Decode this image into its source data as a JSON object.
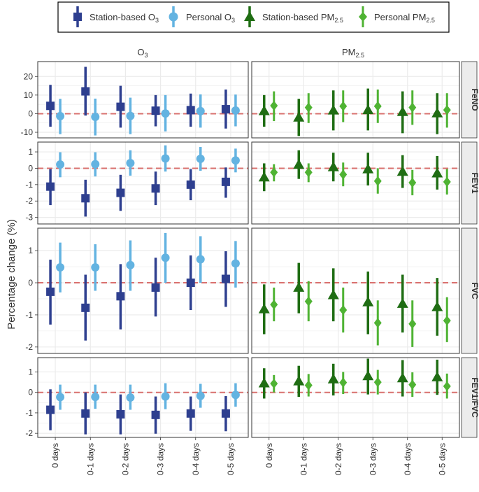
{
  "chart_data": {
    "type": "pointrange",
    "ylabel": "Percentage change (%)",
    "xlabel": "",
    "categories": [
      "0 days",
      "0-1 days",
      "0-2 days",
      "0-3 days",
      "0-4 days",
      "0-5 days"
    ],
    "legend": {
      "placement": "top",
      "items": [
        {
          "base": "Station-based O",
          "sub": "3",
          "color": "#2e3f8f",
          "shape": "square"
        },
        {
          "base": "Personal O",
          "sub": "3",
          "color": "#63b3e1",
          "shape": "circle"
        },
        {
          "base": "Station-based PM",
          "sub": "2.5",
          "color": "#1f6d13",
          "shape": "triangle"
        },
        {
          "base": "Personal PM",
          "sub": "2.5",
          "color": "#4fb333",
          "shape": "diamond"
        }
      ]
    },
    "columns": [
      {
        "base": "O",
        "sub": "3"
      },
      {
        "base": "PM",
        "sub": "2.5"
      }
    ],
    "rows": [
      {
        "label": "FeNO",
        "ylim": [
          -13,
          28
        ],
        "ticks": [
          -10,
          0,
          10,
          20
        ],
        "tick_labels": [
          "-10",
          "0",
          "10",
          "20"
        ],
        "panels": [
          [
            {
              "name": "Station-based O3",
              "estimate": [
                4.2,
                12.0,
                3.7,
                1.6,
                1.9,
                2.4
              ],
              "lower": [
                -7.0,
                -1.0,
                -7.5,
                -6.8,
                -7.0,
                -8.0
              ],
              "upper": [
                15.5,
                25.2,
                15.0,
                10.0,
                10.8,
                13.0
              ]
            },
            {
              "name": "Personal O3",
              "estimate": [
                -1.3,
                -1.7,
                -1.2,
                0.1,
                1.4,
                1.7
              ],
              "lower": [
                -11.0,
                -11.7,
                -11.0,
                -9.5,
                -7.5,
                -6.8
              ],
              "upper": [
                8.0,
                8.1,
                8.6,
                10.0,
                10.4,
                10.3
              ]
            }
          ],
          [
            {
              "name": "Station-based PM2.5",
              "estimate": [
                1.5,
                -2.0,
                1.8,
                2.0,
                1.0,
                0.3
              ],
              "lower": [
                -7.0,
                -12.0,
                -9.0,
                -9.0,
                -10.5,
                -11.0
              ],
              "upper": [
                10.0,
                8.0,
                12.5,
                13.5,
                12.0,
                11.0
              ]
            },
            {
              "name": "Personal PM2.5",
              "estimate": [
                4.3,
                3.3,
                4.0,
                4.0,
                3.3,
                2.0
              ],
              "lower": [
                -4.0,
                -5.0,
                -4.5,
                -5.0,
                -6.0,
                -7.5
              ],
              "upper": [
                12.0,
                11.0,
                12.5,
                13.0,
                12.5,
                11.0
              ]
            }
          ]
        ]
      },
      {
        "label": "FEV1",
        "ylim": [
          -3.4,
          1.6
        ],
        "ticks": [
          -3,
          -2,
          -1,
          0,
          1
        ],
        "tick_labels": [
          "-3",
          "-2",
          "-1",
          "0",
          "1"
        ],
        "panels": [
          [
            {
              "name": "Station-based O3",
              "estimate": [
                -1.12,
                -1.83,
                -1.5,
                -1.23,
                -1.0,
                -0.83
              ],
              "lower": [
                -2.25,
                -2.95,
                -2.6,
                -2.25,
                -1.95,
                -1.8
              ],
              "upper": [
                -0.05,
                -0.7,
                -0.4,
                -0.2,
                -0.05,
                0.05
              ]
            },
            {
              "name": "Personal O3",
              "estimate": [
                0.23,
                0.25,
                0.32,
                0.6,
                0.58,
                0.48
              ],
              "lower": [
                -0.55,
                -0.5,
                -0.45,
                -0.2,
                -0.15,
                -0.25
              ],
              "upper": [
                0.98,
                0.98,
                1.1,
                1.4,
                1.3,
                1.2
              ]
            }
          ],
          [
            {
              "name": "Station-based PM2.5",
              "estimate": [
                -0.55,
                0.22,
                0.08,
                -0.05,
                -0.2,
                -0.3
              ],
              "lower": [
                -1.4,
                -0.65,
                -0.8,
                -1.05,
                -1.2,
                -1.3
              ],
              "upper": [
                0.3,
                1.1,
                0.95,
                0.95,
                0.8,
                0.75
              ]
            },
            {
              "name": "Personal PM2.5",
              "estimate": [
                -0.25,
                -0.25,
                -0.38,
                -0.78,
                -0.88,
                -0.83
              ],
              "lower": [
                -0.8,
                -0.85,
                -1.1,
                -1.55,
                -1.65,
                -1.6
              ],
              "upper": [
                0.25,
                0.3,
                0.35,
                0.0,
                -0.1,
                -0.05
              ]
            }
          ]
        ]
      },
      {
        "label": "FVC",
        "ylim": [
          -2.2,
          1.7
        ],
        "ticks": [
          -2,
          -1,
          0,
          1
        ],
        "tick_labels": [
          "-2",
          "-1",
          "0",
          "1"
        ],
        "panels": [
          [
            {
              "name": "Station-based O3",
              "estimate": [
                -0.28,
                -0.78,
                -0.42,
                -0.15,
                0.0,
                0.12
              ],
              "lower": [
                -1.3,
                -1.8,
                -1.45,
                -1.05,
                -0.85,
                -0.75
              ],
              "upper": [
                0.72,
                0.25,
                0.58,
                0.78,
                0.85,
                0.98
              ]
            },
            {
              "name": "Personal O3",
              "estimate": [
                0.48,
                0.48,
                0.55,
                0.78,
                0.73,
                0.6
              ],
              "lower": [
                -0.3,
                -0.25,
                -0.25,
                0.0,
                0.0,
                -0.15
              ],
              "upper": [
                1.25,
                1.2,
                1.32,
                1.55,
                1.45,
                1.3
              ]
            }
          ],
          [
            {
              "name": "Station-based PM2.5",
              "estimate": [
                -0.82,
                -0.15,
                -0.38,
                -0.6,
                -0.65,
                -0.75
              ],
              "lower": [
                -1.6,
                -0.95,
                -1.2,
                -1.6,
                -1.55,
                -1.65
              ],
              "upper": [
                -0.05,
                0.62,
                0.45,
                0.35,
                0.25,
                0.15
              ]
            },
            {
              "name": "Personal PM2.5",
              "estimate": [
                -0.68,
                -0.58,
                -0.85,
                -1.25,
                -1.28,
                -1.18
              ],
              "lower": [
                -1.2,
                -1.2,
                -1.55,
                -1.95,
                -2.0,
                -1.85
              ],
              "upper": [
                -0.15,
                0.05,
                -0.15,
                -0.55,
                -0.55,
                -0.45
              ]
            }
          ]
        ]
      },
      {
        "label": "FEV1/FVC",
        "ylim": [
          -2.2,
          1.7
        ],
        "ticks": [
          -2,
          -1,
          0,
          1
        ],
        "tick_labels": [
          "-2",
          "-1",
          "0",
          "1"
        ],
        "panels": [
          [
            {
              "name": "Station-based O3",
              "estimate": [
                -0.85,
                -1.03,
                -1.07,
                -1.1,
                -1.03,
                -1.03
              ],
              "lower": [
                -1.85,
                -2.05,
                -2.05,
                -2.02,
                -1.88,
                -1.9
              ],
              "upper": [
                0.15,
                0.0,
                -0.1,
                -0.2,
                -0.2,
                -0.18
              ]
            },
            {
              "name": "Personal O3",
              "estimate": [
                -0.23,
                -0.22,
                -0.25,
                -0.2,
                -0.17,
                -0.12
              ],
              "lower": [
                -0.85,
                -0.8,
                -0.85,
                -0.82,
                -0.75,
                -0.7
              ],
              "upper": [
                0.38,
                0.38,
                0.38,
                0.45,
                0.42,
                0.45
              ]
            }
          ],
          [
            {
              "name": "Station-based PM2.5",
              "estimate": [
                0.45,
                0.55,
                0.65,
                0.8,
                0.7,
                0.75
              ],
              "lower": [
                -0.3,
                -0.22,
                -0.15,
                -0.1,
                -0.2,
                -0.12
              ],
              "upper": [
                1.18,
                1.3,
                1.4,
                1.65,
                1.58,
                1.6
              ]
            },
            {
              "name": "Personal PM2.5",
              "estimate": [
                0.43,
                0.35,
                0.48,
                0.5,
                0.38,
                0.3
              ],
              "lower": [
                0.0,
                -0.2,
                -0.08,
                -0.1,
                -0.22,
                -0.3
              ],
              "upper": [
                0.85,
                0.9,
                1.0,
                1.1,
                0.98,
                0.92
              ]
            }
          ]
        ]
      }
    ]
  },
  "colors": {
    "station_o3": "#2e3f8f",
    "personal_o3": "#63b3e1",
    "station_pm": "#1f6d13",
    "personal_pm": "#4fb333",
    "reference_line": "#d9706e",
    "strip_bg": "#ececec",
    "grid": "#ebebeb"
  }
}
